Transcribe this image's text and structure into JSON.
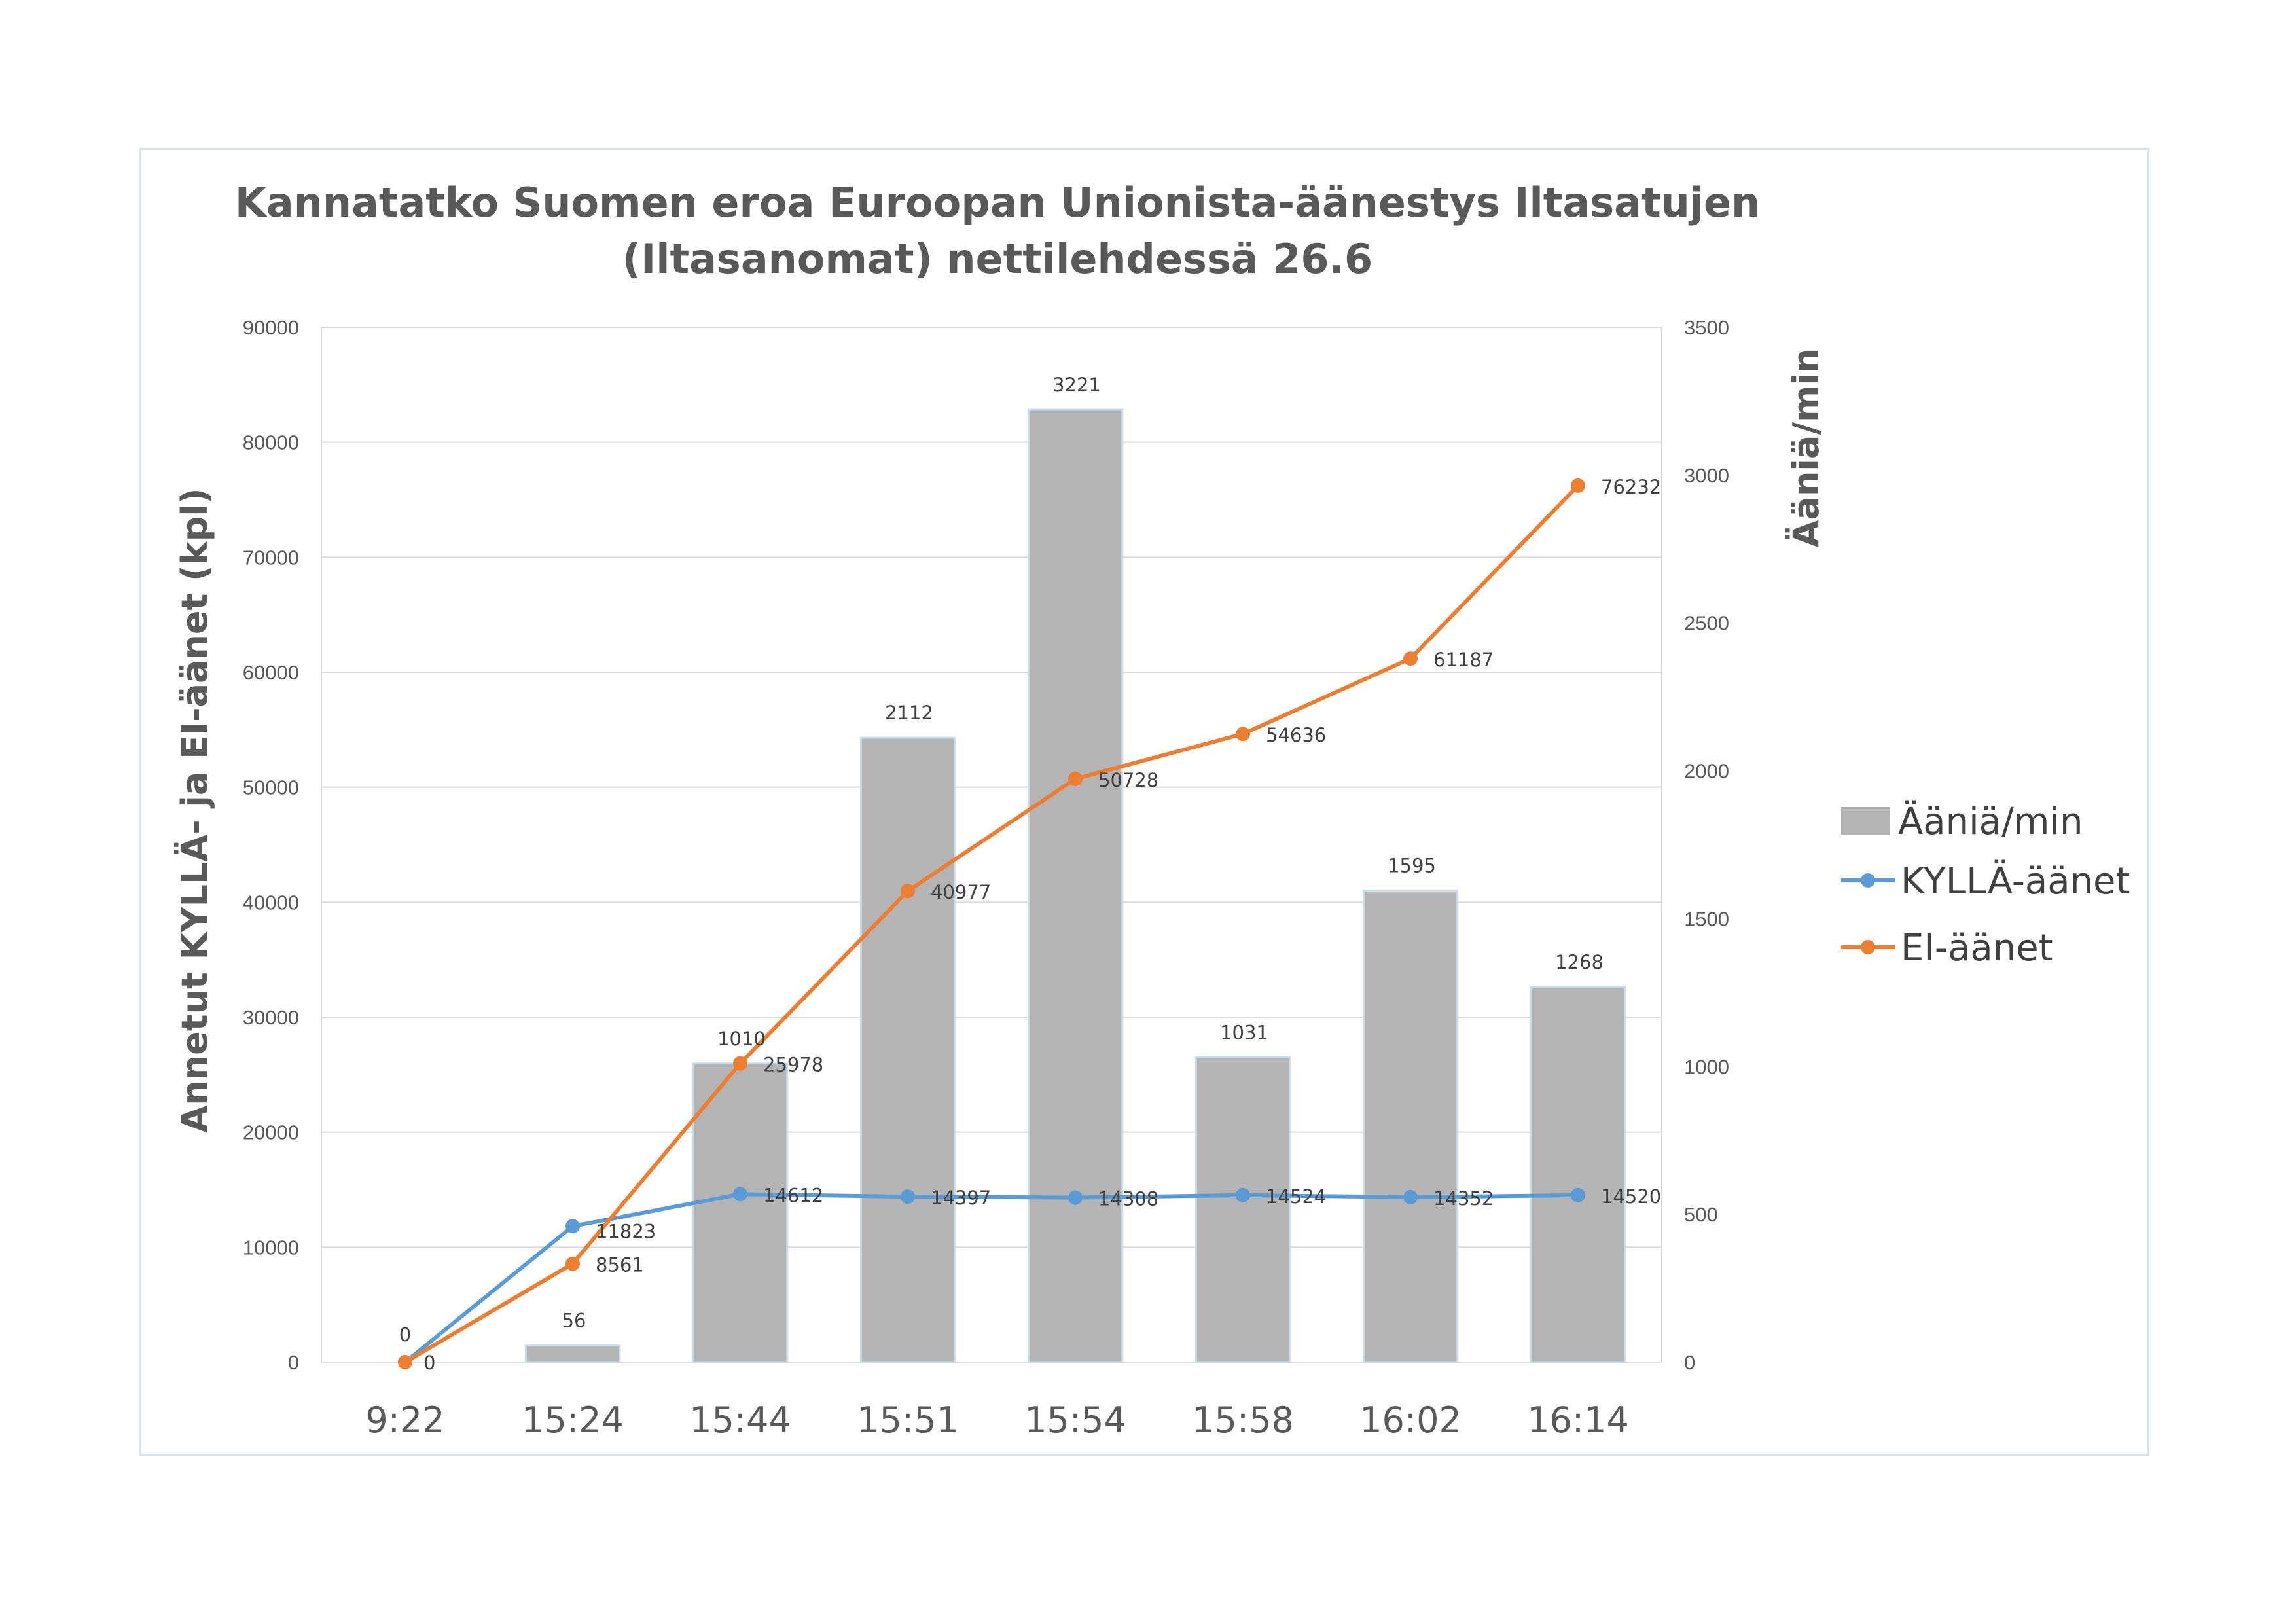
{
  "chart_data": {
    "type": "bar",
    "title_lines": [
      "Kannatatko Suomen eroa Euroopan Unionista-äänestys Iltasatujen",
      "(Iltasanomat) nettilehdessä 26.6"
    ],
    "ylabel": "Annetut KYLLÄ- ja EI-äänet (kpl)",
    "y2label": "Ääniä/min",
    "ylim": [
      0,
      90000
    ],
    "y_ticks": [
      "0",
      "10000",
      "20000",
      "30000",
      "40000",
      "50000",
      "60000",
      "70000",
      "80000",
      "90000"
    ],
    "y2lim": [
      0,
      3500
    ],
    "y2_ticks": [
      "0",
      "500",
      "1000",
      "1500",
      "2000",
      "2500",
      "3000",
      "3500"
    ],
    "categories": [
      "9:22",
      "15:24",
      "15:44",
      "15:51",
      "15:54",
      "15:58",
      "16:02",
      "16:14"
    ],
    "grid": true,
    "legend_position": "right",
    "series": [
      {
        "name": "Ääniä/min",
        "kind": "bar",
        "axis": "secondary",
        "color": "#b4b4b4",
        "values": [
          0,
          56,
          1010,
          2112,
          3221,
          1031,
          1595,
          1268
        ],
        "labels": [
          "0",
          "56",
          "1010",
          "2112",
          "3221",
          "1031",
          "1595",
          "1268"
        ]
      },
      {
        "name": "KYLLÄ-äänet",
        "kind": "line",
        "axis": "primary",
        "color": "#5b9bd5",
        "values": [
          0,
          11823,
          14612,
          14397,
          14308,
          14524,
          14352,
          14520
        ],
        "labels": [
          "0",
          "11823",
          "14612",
          "14397",
          "14308",
          "14524",
          "14352",
          "14520"
        ]
      },
      {
        "name": "EI-äänet",
        "kind": "line",
        "axis": "primary",
        "color": "#ed7d31",
        "values": [
          0,
          8561,
          25978,
          40977,
          50728,
          54636,
          61187,
          76232
        ],
        "labels": [
          "0",
          "8561",
          "25978",
          "40977",
          "50728",
          "54636",
          "61187",
          "76232"
        ]
      }
    ]
  }
}
